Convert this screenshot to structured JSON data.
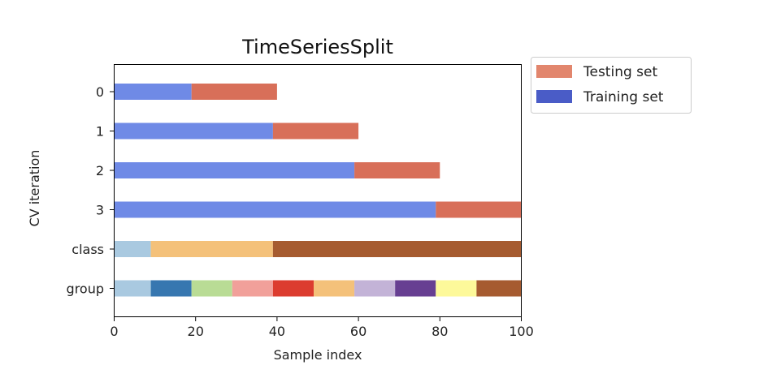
{
  "chart_data": {
    "type": "bar",
    "title": "TimeSeriesSplit",
    "xlabel": "Sample index",
    "ylabel": "CV iteration",
    "xlim": [
      0,
      100
    ],
    "x_ticks": [
      "0",
      "20",
      "40",
      "60",
      "80",
      "100"
    ],
    "y_categories": [
      "0",
      "1",
      "2",
      "3",
      "class",
      "group"
    ],
    "grid": false,
    "legend_position": "outside-top-right",
    "colors": {
      "training": "#6f8ae6",
      "testing": "#d86f59",
      "legend_training": "#4a5cc7",
      "legend_testing": "#e2866d",
      "class": [
        "#a9c9e0",
        "#f4c17a",
        "#a65b30"
      ],
      "group": [
        "#a9c9e0",
        "#3777b0",
        "#b9dc95",
        "#f1a09a",
        "#dc3c2f",
        "#f4c17a",
        "#c3b3d7",
        "#673f92",
        "#fdf99a",
        "#a65b30"
      ]
    },
    "legend": [
      {
        "label": "Testing set",
        "key": "testing"
      },
      {
        "label": "Training set",
        "key": "training"
      }
    ],
    "cv_splits": [
      {
        "label": "0",
        "training": [
          0,
          19
        ],
        "testing": [
          19,
          40
        ]
      },
      {
        "label": "1",
        "training": [
          0,
          39
        ],
        "testing": [
          39,
          60
        ]
      },
      {
        "label": "2",
        "training": [
          0,
          59
        ],
        "testing": [
          59,
          80
        ]
      },
      {
        "label": "3",
        "training": [
          0,
          79
        ],
        "testing": [
          79,
          100
        ]
      }
    ],
    "class_segments": [
      {
        "start": 0,
        "end": 9,
        "class": 0
      },
      {
        "start": 9,
        "end": 39,
        "class": 1
      },
      {
        "start": 39,
        "end": 100,
        "class": 2
      }
    ],
    "group_segments": [
      {
        "start": 0,
        "end": 9,
        "group": 0
      },
      {
        "start": 9,
        "end": 19,
        "group": 1
      },
      {
        "start": 19,
        "end": 29,
        "group": 2
      },
      {
        "start": 29,
        "end": 39,
        "group": 3
      },
      {
        "start": 39,
        "end": 49,
        "group": 4
      },
      {
        "start": 49,
        "end": 59,
        "group": 5
      },
      {
        "start": 59,
        "end": 69,
        "group": 6
      },
      {
        "start": 69,
        "end": 79,
        "group": 7
      },
      {
        "start": 79,
        "end": 89,
        "group": 8
      },
      {
        "start": 89,
        "end": 100,
        "group": 9
      }
    ]
  }
}
